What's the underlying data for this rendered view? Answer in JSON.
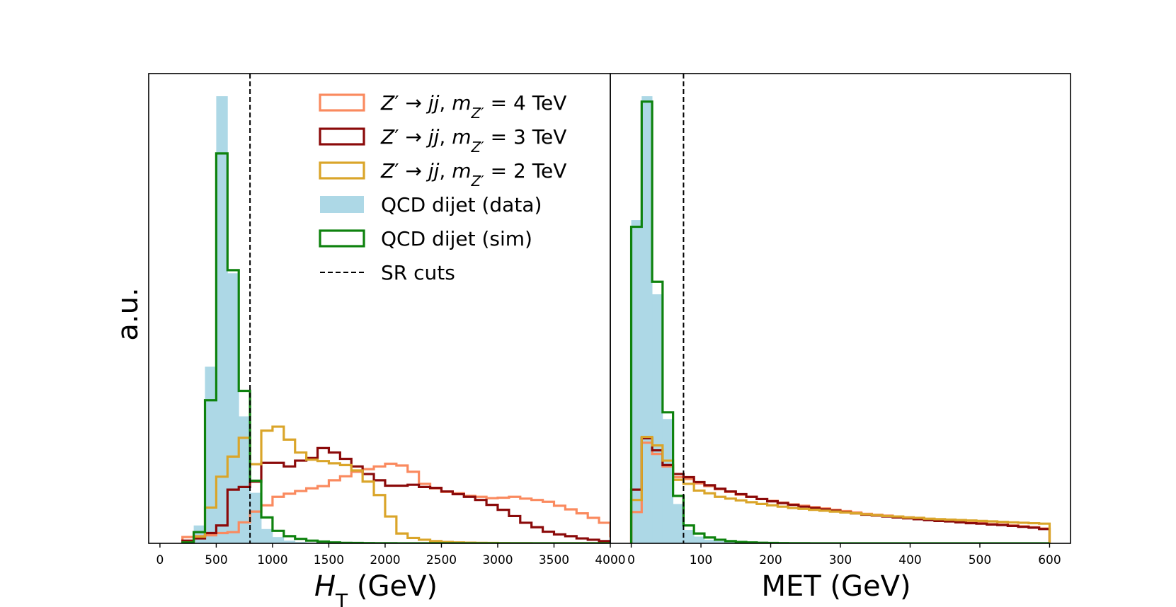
{
  "chart_data": {
    "type": "histogram",
    "ylabel": "a.u.",
    "colors": {
      "z4": "#FA8A5F",
      "z3": "#8B0A0A",
      "z2": "#DAA52A",
      "qcd_data": "#ADD8E6",
      "qcd_sim": "#0E820E"
    },
    "legend": {
      "placement": "top-center",
      "entries": [
        {
          "key": "z4",
          "style": "step",
          "label_parts": [
            {
              "t": "Z",
              "i": true
            },
            {
              "t": "′ → ",
              "i": false
            },
            {
              "t": "jj",
              "i": true
            },
            {
              "t": ", ",
              "i": false
            },
            {
              "t": "m",
              "i": true
            },
            {
              "t": "Z′",
              "i": true,
              "sub": true
            },
            {
              "t": " = 4 TeV",
              "i": false
            }
          ]
        },
        {
          "key": "z3",
          "style": "step",
          "label_parts": [
            {
              "t": "Z",
              "i": true
            },
            {
              "t": "′ → ",
              "i": false
            },
            {
              "t": "jj",
              "i": true
            },
            {
              "t": ", ",
              "i": false
            },
            {
              "t": "m",
              "i": true
            },
            {
              "t": "Z′",
              "i": true,
              "sub": true
            },
            {
              "t": " = 3 TeV",
              "i": false
            }
          ]
        },
        {
          "key": "z2",
          "style": "step",
          "label_parts": [
            {
              "t": "Z",
              "i": true
            },
            {
              "t": "′ → ",
              "i": false
            },
            {
              "t": "jj",
              "i": true
            },
            {
              "t": ", ",
              "i": false
            },
            {
              "t": "m",
              "i": true
            },
            {
              "t": "Z′",
              "i": true,
              "sub": true
            },
            {
              "t": " = 2 TeV",
              "i": false
            }
          ]
        },
        {
          "key": "qcd_data",
          "style": "filled",
          "label_parts": [
            {
              "t": "QCD dijet (data)",
              "i": false
            }
          ]
        },
        {
          "key": "qcd_sim",
          "style": "step",
          "label_parts": [
            {
              "t": "QCD dijet (sim)",
              "i": false
            }
          ]
        },
        {
          "key": "sr",
          "style": "dashed",
          "label_parts": [
            {
              "t": "SR cuts",
              "i": false
            }
          ]
        }
      ]
    },
    "panels": [
      {
        "id": "ht",
        "xlabel_parts": [
          {
            "t": "H",
            "i": true
          },
          {
            "t": "T",
            "i": false,
            "sub": true
          },
          {
            "t": " (GeV)",
            "i": false
          }
        ],
        "xlim": [
          -100,
          4000
        ],
        "ylim": [
          0,
          1.0
        ],
        "xticks": [
          0,
          500,
          1000,
          1500,
          2000,
          2500,
          3000,
          3500,
          4000
        ],
        "sr_cut": 800,
        "bin_start": 200,
        "bin_width": 100,
        "series": {
          "qcd_data": [
            0.002,
            0.04,
            0.395,
            1.0,
            0.604,
            0.284,
            0.113,
            0.032,
            0.014,
            0.006,
            0.003,
            0.002,
            0.001,
            0.001,
            0.0005,
            0.0003,
            0.0002,
            0.0001,
            0,
            0,
            0,
            0,
            0,
            0,
            0,
            0,
            0,
            0,
            0,
            0,
            0,
            0,
            0,
            0,
            0,
            0,
            0,
            0,
            0
          ],
          "qcd_sim": [
            0.002,
            0.025,
            0.32,
            0.872,
            0.611,
            0.341,
            0.14,
            0.058,
            0.028,
            0.016,
            0.01,
            0.006,
            0.004,
            0.002,
            0.001,
            0.0008,
            0.0005,
            0.0003,
            0.0002,
            0.0001,
            0,
            0,
            0,
            0,
            0,
            0,
            0,
            0,
            0,
            0,
            0,
            0,
            0,
            0,
            0,
            0,
            0,
            0,
            0
          ],
          "z2": [
            0.002,
            0.015,
            0.08,
            0.149,
            0.194,
            0.236,
            0.177,
            0.252,
            0.261,
            0.232,
            0.203,
            0.187,
            0.184,
            0.179,
            0.175,
            0.163,
            0.138,
            0.108,
            0.06,
            0.022,
            0.012,
            0.008,
            0.005,
            0.003,
            0.002,
            0.0015,
            0.001,
            0.0008,
            0.0005,
            0.0003,
            0.0002,
            0.0001,
            0,
            0,
            0,
            0,
            0,
            0,
            0
          ],
          "z3": [
            0.006,
            0.011,
            0.023,
            0.04,
            0.12,
            0.126,
            0.138,
            0.18,
            0.18,
            0.172,
            0.185,
            0.191,
            0.213,
            0.203,
            0.189,
            0.172,
            0.155,
            0.141,
            0.129,
            0.129,
            0.131,
            0.126,
            0.124,
            0.116,
            0.11,
            0.104,
            0.097,
            0.086,
            0.075,
            0.061,
            0.046,
            0.036,
            0.026,
            0.02,
            0.016,
            0.011,
            0.008,
            0.005,
            0.003
          ],
          "z4": [
            0.014,
            0.016,
            0.018,
            0.023,
            0.025,
            0.047,
            0.071,
            0.085,
            0.104,
            0.111,
            0.117,
            0.123,
            0.128,
            0.141,
            0.15,
            0.16,
            0.166,
            0.172,
            0.178,
            0.174,
            0.16,
            0.133,
            0.123,
            0.115,
            0.112,
            0.106,
            0.104,
            0.101,
            0.102,
            0.104,
            0.1,
            0.097,
            0.093,
            0.084,
            0.076,
            0.067,
            0.057,
            0.046,
            0.016
          ]
        }
      },
      {
        "id": "met",
        "xlabel_parts": [
          {
            "t": "MET (GeV)",
            "i": false
          }
        ],
        "xlim": [
          -30,
          630
        ],
        "ylim": [
          0,
          1.0
        ],
        "xticks": [
          0,
          100,
          200,
          300,
          400,
          500,
          600
        ],
        "sr_cut": 75,
        "bin_start": 0,
        "bin_width": 15,
        "series": {
          "qcd_data": [
            0.723,
            1.0,
            0.557,
            0.278,
            0.088,
            0.03,
            0.015,
            0.008,
            0.005,
            0.003,
            0.002,
            0.001,
            0.0008,
            0.0005,
            0.0003,
            0.0002,
            0.0001,
            0,
            0,
            0,
            0,
            0,
            0,
            0,
            0,
            0,
            0,
            0,
            0,
            0,
            0,
            0,
            0,
            0,
            0,
            0,
            0,
            0,
            0,
            0
          ],
          "qcd_sim": [
            0.708,
            0.988,
            0.585,
            0.293,
            0.106,
            0.04,
            0.022,
            0.013,
            0.008,
            0.005,
            0.003,
            0.002,
            0.0012,
            0.0008,
            0.0005,
            0.0003,
            0.0002,
            0.0001,
            0,
            0,
            0,
            0,
            0,
            0,
            0,
            0,
            0,
            0,
            0,
            0,
            0,
            0,
            0,
            0,
            0,
            0,
            0,
            0,
            0,
            0
          ],
          "z2": [
            0.097,
            0.238,
            0.219,
            0.185,
            0.142,
            0.133,
            0.118,
            0.112,
            0.104,
            0.1,
            0.096,
            0.092,
            0.088,
            0.085,
            0.082,
            0.079,
            0.077,
            0.075,
            0.073,
            0.071,
            0.069,
            0.067,
            0.065,
            0.063,
            0.061,
            0.06,
            0.058,
            0.057,
            0.055,
            0.054,
            0.053,
            0.052,
            0.051,
            0.05,
            0.049,
            0.048,
            0.047,
            0.046,
            0.045,
            0.044
          ],
          "z3": [
            0.12,
            0.235,
            0.208,
            0.175,
            0.155,
            0.148,
            0.137,
            0.13,
            0.122,
            0.116,
            0.11,
            0.104,
            0.099,
            0.094,
            0.09,
            0.086,
            0.082,
            0.079,
            0.076,
            0.073,
            0.07,
            0.067,
            0.064,
            0.062,
            0.06,
            0.058,
            0.056,
            0.054,
            0.052,
            0.05,
            0.049,
            0.047,
            0.045,
            0.044,
            0.042,
            0.041,
            0.039,
            0.037,
            0.035,
            0.032
          ],
          "z4": [
            0.07,
            0.225,
            0.2,
            0.172,
            0.148,
            0.144,
            0.134,
            0.128,
            0.121,
            0.115,
            0.109,
            0.104,
            0.099,
            0.095,
            0.091,
            0.087,
            0.084,
            0.081,
            0.078,
            0.075,
            0.072,
            0.069,
            0.066,
            0.064,
            0.062,
            0.06,
            0.058,
            0.056,
            0.054,
            0.052,
            0.05,
            0.049,
            0.047,
            0.045,
            0.043,
            0.042,
            0.04,
            0.038,
            0.036,
            0.033
          ]
        }
      }
    ]
  }
}
